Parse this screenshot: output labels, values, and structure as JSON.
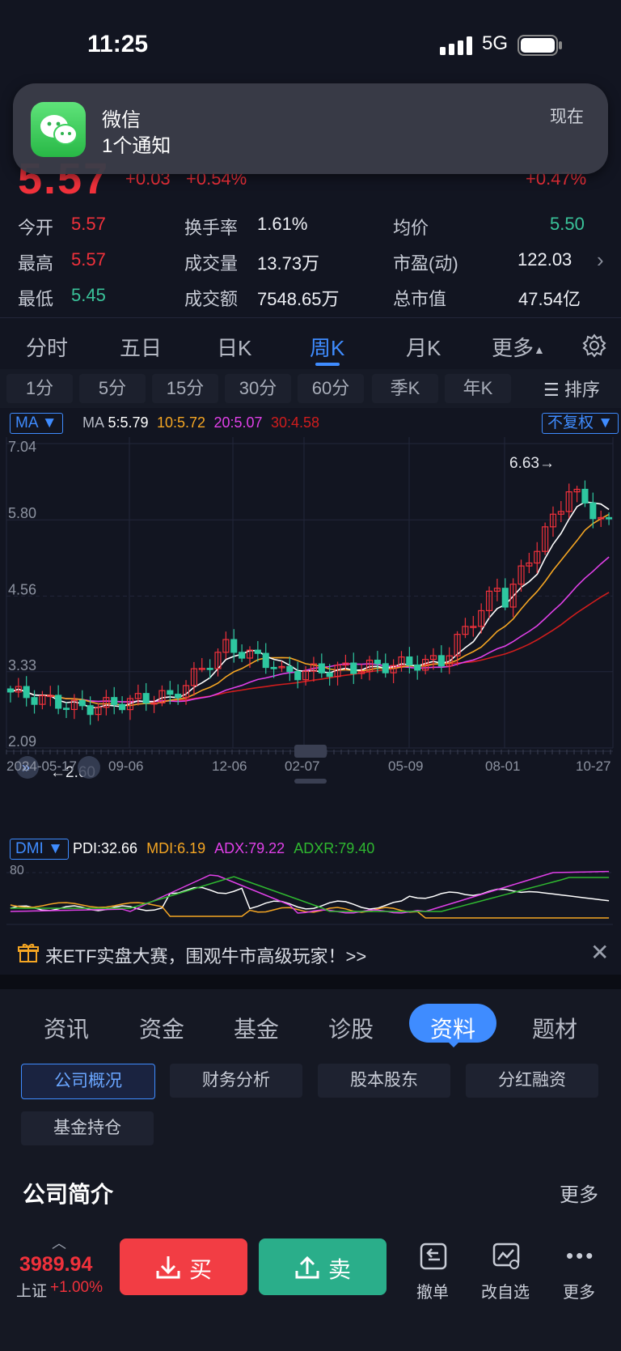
{
  "status": {
    "time": "11:25",
    "network": "5G"
  },
  "notification": {
    "app": "微信",
    "body": "1个通知",
    "time": "现在"
  },
  "quote": {
    "price": "5.57",
    "change": "+0.03",
    "change_pct": "+0.54%",
    "right_change": "+0.47%",
    "open_label": "今开",
    "open": "5.57",
    "high_label": "最高",
    "high": "5.57",
    "low_label": "最低",
    "low": "5.45",
    "turnover_rate_label": "换手率",
    "turnover_rate": "1.61%",
    "volume_label": "成交量",
    "volume": "13.73万",
    "amount_label": "成交额",
    "amount": "7548.65万",
    "avg_label": "均价",
    "avg": "5.50",
    "pe_label": "市盈(动)",
    "pe": "122.03",
    "mcap_label": "总市值",
    "mcap": "47.54亿"
  },
  "tabs": [
    "分时",
    "五日",
    "日K",
    "周K",
    "月K",
    "更多"
  ],
  "periods": [
    "1分",
    "5分",
    "15分",
    "30分",
    "60分",
    "季K",
    "年K"
  ],
  "sort_label": "排序",
  "ma": {
    "selector": "MA",
    "prefix": "MA",
    "ma5": "5:5.79",
    "ma10": "10:5.72",
    "ma20": "20:5.07",
    "ma30": "30:4.58",
    "adjust": "不复权"
  },
  "chart_data": {
    "type": "candlestick",
    "y_labels": [
      "7.04",
      "5.80",
      "4.56",
      "3.33",
      "2.09"
    ],
    "ylim": [
      2.09,
      7.04
    ],
    "x_labels": [
      "2024-05-17",
      "09-06",
      "12-06",
      "02-07",
      "05-09",
      "08-01",
      "10-27"
    ],
    "max_label": "6.63",
    "min_label": "2.60",
    "colors": {
      "up": "#f0313b",
      "down": "#2ec7a0",
      "ma5": "#ffffff",
      "ma10": "#f5a623",
      "ma20": "#e040e8",
      "ma30": "#d01d1d"
    }
  },
  "dmi": {
    "selector": "DMI",
    "pdi": "PDI:32.66",
    "mdi": "MDI:6.19",
    "adx": "ADX:79.22",
    "adxr": "ADXR:79.40",
    "axis_label": "80"
  },
  "banner": {
    "text": "来ETF实盘大赛，围观牛市高级玩家！>>"
  },
  "content_tabs": [
    "资讯",
    "资金",
    "基金",
    "诊股",
    "资料",
    "题材"
  ],
  "chips": [
    "公司概况",
    "财务分析",
    "股本股东",
    "分红融资",
    "基金持仓"
  ],
  "intro": {
    "title": "公司简介",
    "more": "更多"
  },
  "bottom": {
    "index_value": "3989.94",
    "index_name": "上证",
    "index_change": "+1.00%",
    "buy": "买",
    "sell": "卖",
    "cancel": "撤单",
    "watchlist": "改自选",
    "more": "更多"
  }
}
